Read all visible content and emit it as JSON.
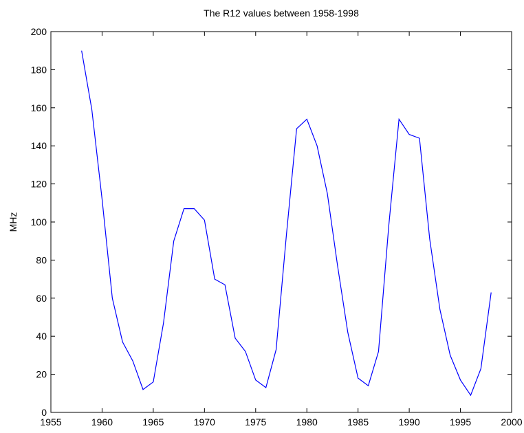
{
  "chart_data": {
    "type": "line",
    "title": "The R12 values between 1958-1998",
    "y_label": "MHz",
    "x": [
      1958,
      1959,
      1960,
      1961,
      1962,
      1963,
      1964,
      1965,
      1966,
      1967,
      1968,
      1969,
      1970,
      1971,
      1972,
      1973,
      1974,
      1975,
      1976,
      1977,
      1978,
      1979,
      1980,
      1981,
      1982,
      1983,
      1984,
      1985,
      1986,
      1987,
      1988,
      1989,
      1990,
      1991,
      1992,
      1993,
      1994,
      1995,
      1996,
      1997,
      1998
    ],
    "series": [
      {
        "name": "R12",
        "color": "#0000ff",
        "values": [
          190,
          159,
          112,
          60,
          37,
          27,
          12,
          16,
          47,
          90,
          107,
          107,
          101,
          70,
          67,
          39,
          32,
          17,
          13,
          33,
          93,
          149,
          154,
          140,
          115,
          77,
          42,
          18,
          14,
          32,
          98,
          154,
          146,
          144,
          91,
          54,
          30,
          17,
          9,
          23,
          63
        ]
      }
    ],
    "xlim": [
      1955,
      2000
    ],
    "xticks": [
      1955,
      1960,
      1965,
      1970,
      1975,
      1980,
      1985,
      1990,
      1995,
      2000
    ],
    "ylim": [
      0,
      200
    ],
    "yticks": [
      0,
      20,
      40,
      60,
      80,
      100,
      120,
      140,
      160,
      180,
      200
    ],
    "grid": false
  }
}
